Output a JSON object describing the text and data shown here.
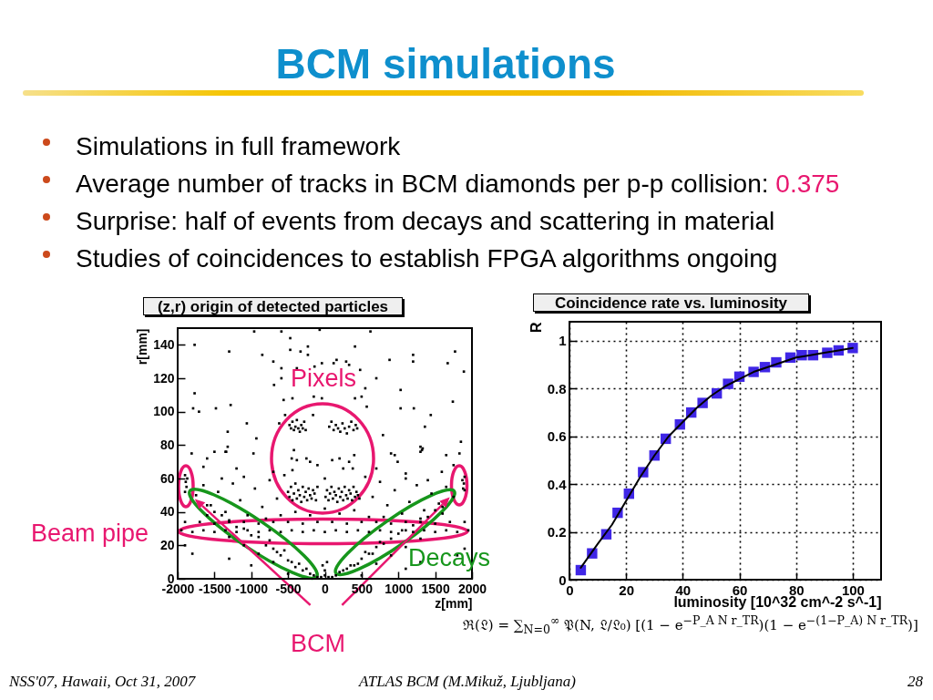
{
  "chart_data": [
    {
      "type": "other",
      "title": "BCM simulations",
      "annotations": [
        "Simulations in full framework",
        "Average number of tracks in BCM diamonds per p-p collision:",
        "0.375",
        "Surprise: half of events from decays and scattering in material",
        "Studies of coincidences to establish FPGA algorithms ongoing",
        "NSS'07, Hawaii, Oct 31, 2007",
        "ATLAS BCM (M.Mikuž, Ljubljana)",
        "28"
      ]
    },
    {
      "type": "scatter",
      "title": "(z,r) origin of detected particles",
      "xlabel": "z[mm]",
      "ylabel": "r[mm]",
      "xlim": [
        -2000,
        2000
      ],
      "ylim": [
        0,
        150
      ],
      "xticks": [
        -2000,
        -1500,
        -1000,
        -500,
        0,
        500,
        1000,
        1500,
        2000
      ],
      "yticks": [
        0,
        20,
        40,
        60,
        80,
        100,
        120,
        140
      ],
      "color": "#000000",
      "marker": "square",
      "x": [
        -1770,
        -960,
        -590,
        -70,
        620,
        -470,
        -1300,
        -850,
        -470,
        -330,
        -230,
        -230,
        410,
        -700,
        120,
        160,
        290,
        880,
        1200,
        1200,
        1670,
        1770,
        1890,
        -590,
        -380,
        -140,
        -40,
        330,
        480,
        700,
        -590,
        550,
        1030,
        -690,
        -1770,
        -1790,
        -1710,
        -1480,
        -1280,
        -560,
        -440,
        -150,
        -40,
        410,
        500,
        570,
        1030,
        1210,
        1740,
        1440,
        1360,
        -1060,
        -620,
        -540,
        -160,
        -1320,
        -930,
        790,
        1850,
        -1320,
        -1350,
        1300,
        1320,
        -1810,
        -1500,
        900,
        950,
        1300,
        1650,
        1830,
        -1600,
        -1340,
        -970,
        990,
        1330,
        1590,
        -1200,
        -700,
        700,
        1100,
        -1650,
        1750,
        -480,
        -460,
        -440,
        -420,
        -400,
        -380,
        -360,
        -340,
        -320,
        -300,
        -280,
        -260,
        60,
        90,
        120,
        150,
        180,
        210,
        240,
        270,
        300,
        330,
        360,
        390,
        420,
        440,
        -450,
        -380,
        -250,
        -200,
        100,
        200,
        330,
        400,
        380,
        -440,
        -420,
        -100,
        250,
        -500,
        -480,
        -460,
        -440,
        -420,
        -400,
        -380,
        -360,
        -340,
        -320,
        -300,
        -280,
        -260,
        -240,
        -220,
        -200,
        -180,
        -160,
        -140,
        -120,
        -100,
        10,
        30,
        50,
        70,
        90,
        110,
        130,
        150,
        170,
        190,
        210,
        230,
        250,
        270,
        290,
        310,
        330,
        350,
        370,
        390,
        410,
        430,
        450,
        470,
        -1900,
        -1700,
        -1500,
        -1300,
        -1100,
        -900,
        -700,
        -500,
        -300,
        -100,
        100,
        300,
        500,
        700,
        900,
        1100,
        1300,
        1500,
        1700,
        1900,
        -1950,
        -1800,
        -1650,
        -1500,
        -1350,
        -1200,
        -1050,
        -900,
        -750,
        -600,
        -450,
        -300,
        -150,
        0,
        150,
        300,
        450,
        600,
        750,
        900,
        1050,
        1200,
        1350,
        1500,
        1650,
        1800,
        1950,
        -1900,
        -1890,
        -1880,
        -1900,
        -1870,
        -1750,
        -1650,
        -1550,
        -1450,
        -1350,
        -1250,
        -1150,
        -1050,
        -950,
        -850,
        -750,
        -650,
        -600,
        -1600,
        -1100,
        -800,
        -1400,
        1900,
        1890,
        1880,
        1900,
        1870,
        1750,
        1650,
        1550,
        1450,
        1350,
        1250,
        1150,
        1050,
        950,
        850,
        750,
        650,
        600,
        1600,
        1100,
        800,
        1400,
        -400,
        -200,
        0,
        200,
        400,
        -550,
        550,
        0,
        -1600,
        -1500,
        -1400,
        -1300,
        -1200,
        -1100,
        -1000,
        -900,
        -800,
        -750,
        -700,
        -650,
        -600,
        -550,
        -500,
        -450,
        -400,
        -350,
        -300,
        -250,
        -200,
        -150,
        -100,
        -900,
        -700,
        -1100,
        -500,
        -1300,
        1600,
        1500,
        1400,
        1300,
        1200,
        1100,
        1000,
        900,
        800,
        750,
        700,
        650,
        600,
        550,
        500,
        450,
        400,
        350,
        300,
        250,
        200,
        150,
        100,
        900,
        700,
        1100,
        500,
        1300,
        -50,
        0,
        50,
        0,
        -30,
        30,
        -1800,
        -1300,
        -1000,
        1300,
        1800,
        1100,
        -1900,
        1900
      ],
      "values": [
        140,
        148,
        148,
        149,
        148,
        144,
        136,
        134,
        137,
        136,
        139,
        134,
        139,
        130,
        129,
        131,
        130,
        131,
        134,
        130,
        129,
        136,
        124,
        126,
        126,
        127,
        129,
        128,
        125,
        120,
        120,
        114,
        113,
        116,
        111,
        102,
        100,
        102,
        104,
        107,
        108,
        109,
        108,
        108,
        109,
        103,
        102,
        102,
        106,
        98,
        91,
        93,
        93,
        98,
        98,
        88,
        84,
        86,
        82,
        79,
        76,
        79,
        77,
        75,
        76,
        75,
        74,
        76,
        74,
        75,
        72,
        76,
        75,
        70,
        78,
        64,
        66,
        64,
        66,
        63,
        67,
        68,
        92,
        90,
        94,
        89,
        91,
        95,
        90,
        88,
        92,
        90,
        94,
        89,
        91,
        94,
        89,
        92,
        90,
        88,
        93,
        90,
        87,
        91,
        94,
        89,
        92,
        90,
        72,
        71,
        72,
        70,
        71,
        72,
        70,
        74,
        66,
        65,
        77,
        68,
        66,
        52,
        49,
        55,
        47,
        51,
        57,
        48,
        53,
        50,
        46,
        55,
        49,
        52,
        47,
        54,
        50,
        48,
        53,
        51,
        47,
        55,
        49,
        53,
        47,
        51,
        55,
        48,
        52,
        50,
        46,
        54,
        49,
        52,
        47,
        55,
        50,
        48,
        53,
        51,
        47,
        55,
        49,
        52,
        50,
        48,
        34,
        34,
        33,
        34,
        34,
        33,
        34,
        34,
        33,
        34,
        34,
        33,
        34,
        34,
        33,
        34,
        34,
        33,
        34,
        34,
        29,
        28,
        29,
        28,
        29,
        28,
        29,
        28,
        29,
        28,
        29,
        28,
        29,
        28,
        29,
        28,
        29,
        28,
        29,
        28,
        29,
        28,
        29,
        28,
        29,
        28,
        29,
        62,
        58,
        55,
        52,
        60,
        50,
        56,
        44,
        52,
        40,
        57,
        47,
        38,
        54,
        43,
        59,
        48,
        38,
        38,
        61,
        36,
        60,
        61,
        57,
        54,
        53,
        59,
        49,
        55,
        45,
        51,
        41,
        56,
        46,
        39,
        53,
        44,
        58,
        49,
        37,
        39,
        60,
        37,
        59,
        40,
        38,
        42,
        39,
        41,
        62,
        61,
        60,
        44,
        40,
        38,
        35,
        31,
        30,
        26,
        25,
        20,
        23,
        18,
        16,
        14,
        17,
        11,
        10,
        7,
        9,
        5,
        6,
        3,
        2,
        1,
        15,
        10,
        20,
        3,
        25,
        43,
        41,
        37,
        36,
        32,
        29,
        27,
        24,
        21,
        22,
        19,
        15,
        15,
        16,
        12,
        9,
        8,
        8,
        6,
        5,
        4,
        2,
        1,
        14,
        9,
        19,
        2,
        24,
        1,
        2,
        1,
        5,
        8,
        10,
        15,
        12,
        8,
        10,
        14,
        6,
        20,
        18
      ],
      "annotations": [
        "Pixels",
        "Beam pipe",
        "Decays",
        "BCM"
      ]
    },
    {
      "type": "scatter",
      "title": "Coincidence rate vs. luminosity",
      "xlabel": "luminosity [10^32 cm^-2 s^-1]",
      "ylabel": "R",
      "xlim": [
        0,
        110
      ],
      "ylim": [
        0,
        1.08
      ],
      "xticks": [
        0,
        20,
        40,
        60,
        80,
        100
      ],
      "yticks": [
        0,
        0.2,
        0.4,
        0.6,
        0.8,
        1
      ],
      "grid": true,
      "series": [
        {
          "color": "#3f26e6",
          "marker": "square",
          "x": [
            4,
            8,
            13,
            17,
            21,
            26,
            30,
            34,
            39,
            43,
            47,
            52,
            56,
            60,
            65,
            69,
            73,
            78,
            82,
            86,
            91,
            95,
            100
          ],
          "values": [
            0.04,
            0.11,
            0.19,
            0.28,
            0.36,
            0.45,
            0.52,
            0.59,
            0.65,
            0.7,
            0.74,
            0.78,
            0.82,
            0.85,
            0.87,
            0.89,
            0.91,
            0.93,
            0.94,
            0.94,
            0.95,
            0.96,
            0.97
          ]
        },
        {
          "type": "line",
          "color": "#000000",
          "x": [
            4,
            10,
            15,
            20,
            25,
            30,
            35,
            40,
            45,
            50,
            55,
            60,
            65,
            70,
            75,
            80,
            85,
            90,
            95,
            100
          ],
          "values": [
            0.05,
            0.15,
            0.23,
            0.33,
            0.43,
            0.52,
            0.6,
            0.66,
            0.72,
            0.77,
            0.81,
            0.84,
            0.87,
            0.89,
            0.91,
            0.93,
            0.94,
            0.95,
            0.96,
            0.97
          ]
        }
      ],
      "annotations": [
        "ℜ(𝔏) = ∑$_{N=0}$$^{∞}$ 𝔓(N, 𝔏/𝔏₀) [(1 − e$^{−P_A N r_TR}$)(1 − e$^{−(1−P_A) N r_TR}$)]"
      ]
    }
  ]
}
